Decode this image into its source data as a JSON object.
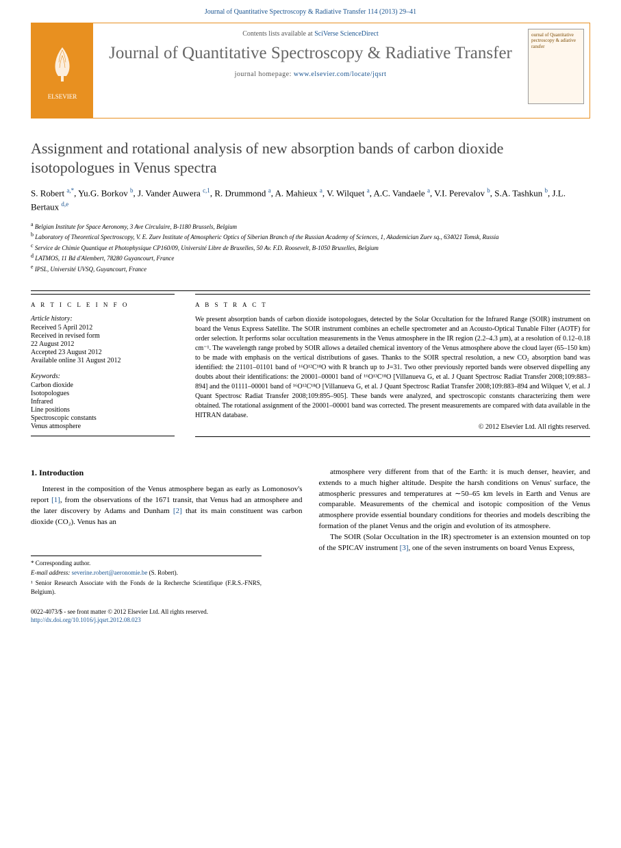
{
  "header": {
    "journal_ref": "Journal of Quantitative Spectroscopy & Radiative Transfer 114 (2013) 29–41"
  },
  "banner": {
    "contents_prefix": "Contents lists available at ",
    "contents_link": "SciVerse ScienceDirect",
    "journal_name": "Journal of Quantitative Spectroscopy & Radiative Transfer",
    "homepage_prefix": "journal homepage: ",
    "homepage_url": "www.elsevier.com/locate/jqsrt",
    "publisher_logo_label": "ELSEVIER",
    "cover_text": "ournal of Quantitative pectroscopy & adiative ransfer"
  },
  "article": {
    "title": "Assignment and rotational analysis of new absorption bands of carbon dioxide isotopologues in Venus spectra",
    "authors_html": "S. Robert <sup>a,*</sup>, Yu.G. Borkov <sup>b</sup>, J. Vander Auwera <sup>c,1</sup>, R. Drummond <sup>a</sup>, A. Mahieux <sup>a</sup>, V. Wilquet <sup>a</sup>, A.C. Vandaele <sup>a</sup>, V.I. Perevalov <sup>b</sup>, S.A. Tashkun <sup>b</sup>, J.L. Bertaux <sup>d,e</sup>",
    "affiliations": [
      {
        "sup": "a",
        "text": "Belgian Institute for Space Aeronomy, 3 Ave Circulaire, B-1180 Brussels, Belgium"
      },
      {
        "sup": "b",
        "text": "Laboratory of Theoretical Spectroscopy, V. E. Zuev Institute of Atmospheric Optics of Siberian Branch of the Russian Academy of Sciences, 1, Akademician Zuev sq., 634021 Tomsk, Russia"
      },
      {
        "sup": "c",
        "text": "Service de Chimie Quantique et Photophysique CP160/09, Université Libre de Bruxelles, 50 Av. F.D. Roosevelt, B-1050 Bruxelles, Belgium"
      },
      {
        "sup": "d",
        "text": "LATMOS, 11 Bd d'Alembert, 78280 Guyancourt, France"
      },
      {
        "sup": "e",
        "text": "IPSL, Université UVSQ, Guyancourt, France"
      }
    ]
  },
  "info": {
    "heading": "A R T I C L E  I N F O",
    "history_label": "Article history:",
    "history": [
      "Received 5 April 2012",
      "Received in revised form",
      "22 August 2012",
      "Accepted 23 August 2012",
      "Available online 31 August 2012"
    ],
    "keywords_label": "Keywords:",
    "keywords": [
      "Carbon dioxide",
      "Isotopologues",
      "Infrared",
      "Line positions",
      "Spectroscopic constants",
      "Venus atmosphere"
    ]
  },
  "abstract": {
    "heading": "A B S T R A C T",
    "text": "We present absorption bands of carbon dioxide isotopologues, detected by the Solar Occultation for the Infrared Range (SOIR) instrument on board the Venus Express Satellite. The SOIR instrument combines an echelle spectrometer and an Acousto-Optical Tunable Filter (AOTF) for order selection. It performs solar occultation measurements in the Venus atmosphere in the IR region (2.2–4.3 μm), at a resolution of 0.12–0.18 cm⁻¹. The wavelength range probed by SOIR allows a detailed chemical inventory of the Venus atmosphere above the cloud layer (65–150 km) to be made with emphasis on the vertical distributions of gases. Thanks to the SOIR spectral resolution, a new CO₂ absorption band was identified: the 21101–01101 band of ¹⁶O¹²C¹⁸O with R branch up to J=31. Two other previously reported bands were observed dispelling any doubts about their identifications: the 20001–00001 band of ¹⁶O¹³C¹⁸O [Villanueva G, et al. J Quant Spectrosc Radiat Transfer 2008;109:883–894] and the 01111–00001 band of ¹⁶O¹²C¹⁸O [Villanueva G, et al. J Quant Spectrosc Radiat Transfer 2008;109:883–894 and Wilquet V, et al. J Quant Spectrosc Radiat Transfer 2008;109:895–905]. These bands were analyzed, and spectroscopic constants characterizing them were obtained. The rotational assignment of the 20001–00001 band was corrected. The present measurements are compared with data available in the HITRAN database.",
    "copyright": "© 2012 Elsevier Ltd. All rights reserved."
  },
  "body": {
    "section1_heading": "1. Introduction",
    "col1_p1": "Interest in the composition of the Venus atmosphere began as early as Lomonosov's report [1], from the observations of the 1671 transit, that Venus had an atmosphere and the later discovery by Adams and Dunham [2] that its main constituent was carbon dioxide (CO₂). Venus has an",
    "col2_p1": "atmosphere very different from that of the Earth: it is much denser, heavier, and extends to a much higher altitude. Despite the harsh conditions on Venus' surface, the atmospheric pressures and temperatures at ∼50–65 km levels in Earth and Venus are comparable. Measurements of the chemical and isotopic composition of the Venus atmosphere provide essential boundary conditions for theories and models describing the formation of the planet Venus and the origin and evolution of its atmosphere.",
    "col2_p2": "The SOIR (Solar Occultation in the IR) spectrometer is an extension mounted on top of the SPICAV instrument [3], one of the seven instruments on board Venus Express,"
  },
  "footnotes": {
    "corresponding": "* Corresponding author.",
    "email_label": "E-mail address: ",
    "email": "severine.robert@aeronomie.be",
    "email_suffix": " (S. Robert).",
    "note1": "¹ Senior Research Associate with the Fonds de la Recherche Scientifique (F.R.S.-FNRS, Belgium)."
  },
  "footer": {
    "line1": "0022-4073/$ - see front matter © 2012 Elsevier Ltd. All rights reserved.",
    "doi_url": "http://dx.doi.org/10.1016/j.jqsrt.2012.08.023"
  },
  "colors": {
    "link_blue": "#1a5490",
    "orange": "#e89020",
    "title_gray": "#444444",
    "journal_gray": "#666666"
  }
}
